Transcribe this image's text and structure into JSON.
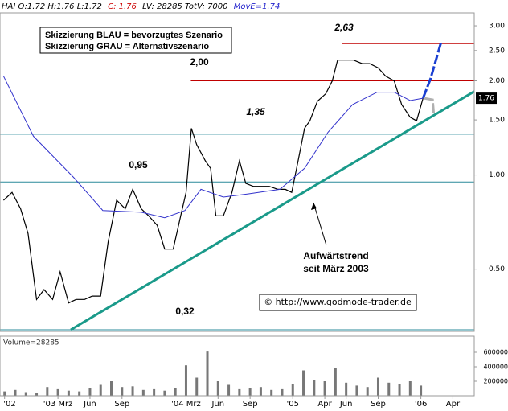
{
  "chart_data": {
    "type": "line",
    "header": [
      {
        "text": "HAI O:1.72 H:1.76 L:1.72",
        "color": "#000000"
      },
      {
        "text": "C: 1.76",
        "color": "#cc0000"
      },
      {
        "text": "LV: 28285 TotV: 7000",
        "color": "#000000"
      },
      {
        "text": "MovE=1.74",
        "color": "#2222cc"
      }
    ],
    "log_scale": true,
    "xlim": [
      -3.43,
      41.0
    ],
    "ylim": [
      0.32,
      3.26
    ],
    "xticks": [
      {
        "value": -3,
        "label": "'02"
      },
      {
        "value": 2,
        "label": "'03 Mrz"
      },
      {
        "value": 5,
        "label": "Jun"
      },
      {
        "value": 8,
        "label": "Sep"
      },
      {
        "value": 14,
        "label": "'04 Mrz"
      },
      {
        "value": 17,
        "label": "Jun"
      },
      {
        "value": 20,
        "label": "Sep"
      },
      {
        "value": 24,
        "label": "'05"
      },
      {
        "value": 27,
        "label": "Apr"
      },
      {
        "value": 29,
        "label": "Jun"
      },
      {
        "value": 32,
        "label": "Sep"
      },
      {
        "value": 36,
        "label": "'06"
      },
      {
        "value": 39,
        "label": "Apr"
      }
    ],
    "yticks": [
      {
        "value": 0.5,
        "label": "0.50"
      },
      {
        "value": 1,
        "label": "1.00"
      },
      {
        "value": 1.5,
        "label": "1.50"
      },
      {
        "value": 2,
        "label": "2.00"
      },
      {
        "value": 2.5,
        "label": "2.50"
      },
      {
        "value": 3,
        "label": "3.00"
      }
    ],
    "series": [
      {
        "color": "#000000",
        "x": [
          -3.1,
          -2.3,
          -1.5,
          -0.8,
          0,
          0.7,
          1.5,
          2.2,
          3,
          3.7,
          4.5,
          5.2,
          6,
          6.7,
          7.5,
          8.3,
          9,
          9.8,
          10.5,
          11.3,
          12,
          12.8,
          13.5,
          14,
          14.5,
          15,
          15.8,
          16.3,
          16.8,
          17.5,
          18.3,
          19,
          19.6,
          20.3,
          21.1,
          21.8,
          22.6,
          23.3,
          23.9,
          24.5,
          25.1,
          25.6,
          26.3,
          27.1,
          27.7,
          28.2,
          29,
          29.7,
          30.5,
          31.2,
          32,
          32.7,
          33.5,
          34.2,
          35,
          35.6,
          36.2
        ],
        "values": [
          0.83,
          0.88,
          0.78,
          0.65,
          0.4,
          0.43,
          0.4,
          0.49,
          0.39,
          0.4,
          0.4,
          0.41,
          0.41,
          0.61,
          0.83,
          0.78,
          0.9,
          0.78,
          0.74,
          0.69,
          0.58,
          0.58,
          0.74,
          0.88,
          1.41,
          1.25,
          1.11,
          1.05,
          0.74,
          0.74,
          0.88,
          1.11,
          0.94,
          0.92,
          0.92,
          0.92,
          0.9,
          0.9,
          0.88,
          1.11,
          1.41,
          1.49,
          1.72,
          1.82,
          2.0,
          2.33,
          2.33,
          2.33,
          2.27,
          2.27,
          2.2,
          2.07,
          2.0,
          1.68,
          1.53,
          1.49,
          1.76
        ]
      },
      {
        "color": "#3333cc",
        "x": [
          -3.1,
          -0.3,
          3.5,
          6.2,
          9.8,
          12.0,
          13.9,
          15.4,
          17.5,
          19.8,
          22.8,
          25.1,
          27.3,
          29.6,
          31.9,
          33.5,
          35.0,
          36.2
        ],
        "values": [
          2.07,
          1.33,
          0.98,
          0.77,
          0.76,
          0.73,
          0.77,
          0.9,
          0.85,
          0.87,
          0.9,
          1.05,
          1.37,
          1.68,
          1.84,
          1.84,
          1.73,
          1.76
        ]
      },
      {
        "color": "#1a3fd1",
        "x": [
          36.2,
          36.9,
          37.9
        ],
        "values": [
          1.76,
          2.03,
          2.66
        ]
      },
      {
        "color": "#b0b0b0",
        "x": [
          36.3,
          37.1,
          37.2
        ],
        "values": [
          1.76,
          1.74,
          1.58
        ]
      }
    ],
    "levels": [
      {
        "value": 2.63,
        "label": "2,63",
        "color": "#c00000",
        "from": 28.6
      },
      {
        "value": 2.0,
        "label": "2,00",
        "color": "#c00000",
        "from": 14.45
      },
      {
        "value": 1.35,
        "label": "1,35",
        "color": "#2a8a9a",
        "from": -3.43
      },
      {
        "value": 0.95,
        "label": "0,95",
        "color": "#2a8a9a",
        "from": -3.43
      },
      {
        "value": 0.32,
        "label": "0,32",
        "color": "#2a8a9a",
        "from": -3.43
      }
    ],
    "trendline": {
      "color": "#1a9a8a",
      "x": [
        3.2,
        41.0
      ],
      "values": [
        0.32,
        1.85
      ]
    },
    "annotations": {
      "legend": [
        "Skizzierung BLAU = bevorzugtes Szenario",
        "Skizzierung GRAU = Alternativszenario"
      ],
      "trend_note": [
        "Aufwärtstrend",
        "seit März 2003"
      ],
      "copyright": "© http://www.godmode-trader.de",
      "price_flag": "1.76"
    },
    "volume": {
      "label": "Volume=28285",
      "color": "#777777",
      "x": [
        -3,
        -2,
        -1,
        0,
        1,
        2,
        3,
        4,
        5,
        6,
        7,
        8,
        9,
        10,
        11,
        12,
        13,
        14,
        15,
        16,
        17,
        18,
        19,
        20,
        21,
        22,
        23,
        24,
        25,
        26,
        27,
        28,
        29,
        30,
        31,
        32,
        33,
        34,
        35,
        36
      ],
      "values": [
        60000,
        80000,
        50000,
        40000,
        120000,
        90000,
        70000,
        60000,
        100000,
        150000,
        200000,
        120000,
        130000,
        80000,
        90000,
        70000,
        110000,
        420000,
        250000,
        610000,
        200000,
        150000,
        90000,
        100000,
        120000,
        80000,
        90000,
        160000,
        350000,
        220000,
        200000,
        380000,
        180000,
        140000,
        120000,
        250000,
        180000,
        160000,
        200000,
        140000
      ],
      "ylim": [
        0,
        800000
      ],
      "yticks": [
        200000,
        400000,
        600000
      ]
    }
  }
}
